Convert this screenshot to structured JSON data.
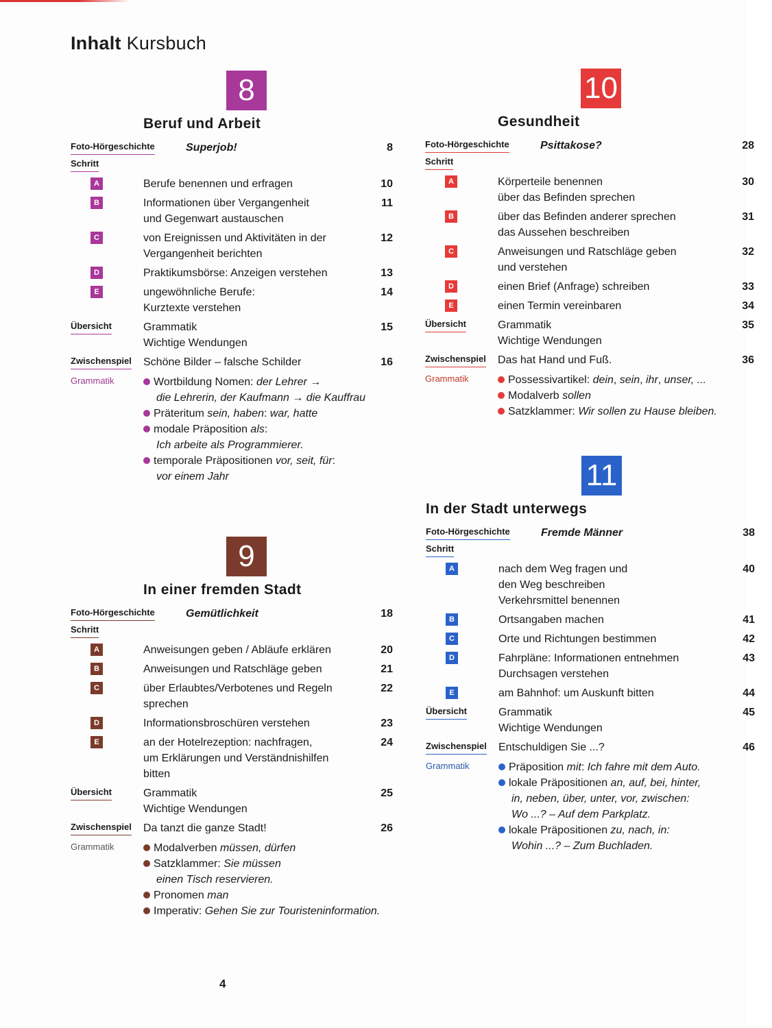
{
  "header": {
    "title_bold": "Inhalt",
    "title_rest": "Kursbuch"
  },
  "page_number": "4",
  "units": [
    {
      "number": "8",
      "title": "Beruf und Arbeit",
      "color": "#a8389a",
      "grammar_color": "#9a3a8e",
      "rows": [
        {
          "type": "story",
          "label": "Foto-Hörgeschichte",
          "lines": [
            "Superjob!"
          ],
          "page": "8"
        },
        {
          "type": "label",
          "label": "Schritt"
        },
        {
          "type": "step",
          "marker": "A",
          "lines": [
            "Berufe benennen und erfragen"
          ],
          "page": "10"
        },
        {
          "type": "step",
          "marker": "B",
          "lines": [
            "Informationen über Vergangenheit",
            "und Gegenwart austauschen"
          ],
          "page": "11"
        },
        {
          "type": "step",
          "marker": "C",
          "lines": [
            "von Ereignissen und Aktivitäten in der",
            "Vergangenheit berichten"
          ],
          "page": "12"
        },
        {
          "type": "step",
          "marker": "D",
          "lines": [
            "Praktikumsbörse: Anzeigen verstehen"
          ],
          "page": "13"
        },
        {
          "type": "step",
          "marker": "E",
          "lines": [
            "ungewöhnliche Berufe:",
            "Kurztexte verstehen"
          ],
          "page": "14"
        },
        {
          "type": "plain",
          "label": "Übersicht",
          "lines": [
            "Grammatik",
            "Wichtige Wendungen"
          ],
          "page": "15"
        },
        {
          "type": "plain",
          "label": "Zwischenspiel",
          "lines": [
            "Schöne Bilder – falsche Schilder"
          ],
          "page": "16"
        },
        {
          "type": "grammar",
          "label": "Grammatik",
          "items": [
            [
              [
                [
                  "Wortbildung Nomen: ",
                  0
                ],
                [
                  "der Lehrer →",
                  1
                ]
              ],
              [
                [
                  "die Lehrerin, der Kaufmann → die Kauffrau",
                  1
                ]
              ]
            ],
            [
              [
                [
                  "Präteritum ",
                  0
                ],
                [
                  "sein, haben",
                  1
                ],
                [
                  ": ",
                  0
                ],
                [
                  "war, hatte",
                  1
                ]
              ]
            ],
            [
              [
                [
                  "modale Präposition ",
                  0
                ],
                [
                  "als",
                  1
                ],
                [
                  ":",
                  0
                ]
              ],
              [
                [
                  "Ich arbeite als Programmierer.",
                  1
                ]
              ]
            ],
            [
              [
                [
                  "temporale Präpositionen ",
                  0
                ],
                [
                  "vor, seit, für",
                  1
                ],
                [
                  ":",
                  0
                ]
              ],
              [
                [
                  "vor einem Jahr",
                  1
                ]
              ]
            ]
          ]
        }
      ]
    },
    {
      "number": "9",
      "title": "In einer fremden Stadt",
      "color": "#7b3b2c",
      "grammar_color": "#555555",
      "rows": [
        {
          "type": "story",
          "label": "Foto-Hörgeschichte",
          "lines": [
            "Gemütlichkeit"
          ],
          "page": "18"
        },
        {
          "type": "label",
          "label": "Schritt"
        },
        {
          "type": "step",
          "marker": "A",
          "lines": [
            "Anweisungen geben / Abläufe erklären"
          ],
          "page": "20"
        },
        {
          "type": "step",
          "marker": "B",
          "lines": [
            "Anweisungen und Ratschläge geben"
          ],
          "page": "21"
        },
        {
          "type": "step",
          "marker": "C",
          "lines": [
            "über Erlaubtes/Verbotenes und Regeln",
            "sprechen"
          ],
          "page": "22"
        },
        {
          "type": "step",
          "marker": "D",
          "lines": [
            "Informationsbroschüren verstehen"
          ],
          "page": "23"
        },
        {
          "type": "step",
          "marker": "E",
          "lines": [
            "an der Hotelrezeption: nachfragen,",
            "um Erklärungen und Verständnishilfen",
            "bitten"
          ],
          "page": "24"
        },
        {
          "type": "plain",
          "label": "Übersicht",
          "lines": [
            "Grammatik",
            "Wichtige Wendungen"
          ],
          "page": "25"
        },
        {
          "type": "plain",
          "label": "Zwischenspiel",
          "lines": [
            "Da tanzt die ganze Stadt!"
          ],
          "page": "26"
        },
        {
          "type": "grammar",
          "label": "Grammatik",
          "items": [
            [
              [
                [
                  "Modalverben ",
                  0
                ],
                [
                  "müssen, dürfen",
                  1
                ]
              ]
            ],
            [
              [
                [
                  "Satzklammer: ",
                  0
                ],
                [
                  "Sie müssen",
                  1
                ]
              ],
              [
                [
                  "einen Tisch reservieren.",
                  1
                ]
              ]
            ],
            [
              [
                [
                  "Pronomen ",
                  0
                ],
                [
                  "man",
                  1
                ]
              ]
            ],
            [
              [
                [
                  "Imperativ: ",
                  0
                ],
                [
                  "Gehen Sie zur Touristeninformation.",
                  1
                ]
              ]
            ]
          ]
        }
      ]
    },
    {
      "number": "10",
      "title": "Gesundheit",
      "color": "#e63a3a",
      "grammar_color": "#c0392b",
      "rows": [
        {
          "type": "story",
          "label": "Foto-Hörgeschichte",
          "lines": [
            "Psittakose?"
          ],
          "page": "28"
        },
        {
          "type": "label",
          "label": "Schritt"
        },
        {
          "type": "step",
          "marker": "A",
          "lines": [
            "Körperteile benennen",
            "über das Befinden sprechen"
          ],
          "page": "30"
        },
        {
          "type": "step",
          "marker": "B",
          "lines": [
            "über das Befinden anderer sprechen",
            "das Aussehen beschreiben"
          ],
          "page": "31"
        },
        {
          "type": "step",
          "marker": "C",
          "lines": [
            "Anweisungen und Ratschläge geben",
            "und verstehen"
          ],
          "page": "32"
        },
        {
          "type": "step",
          "marker": "D",
          "lines": [
            "einen Brief (Anfrage) schreiben"
          ],
          "page": "33"
        },
        {
          "type": "step",
          "marker": "E",
          "lines": [
            "einen Termin vereinbaren"
          ],
          "page": "34"
        },
        {
          "type": "plain",
          "label": "Übersicht",
          "lines": [
            "Grammatik",
            "Wichtige Wendungen"
          ],
          "page": "35"
        },
        {
          "type": "plain",
          "label": "Zwischenspiel",
          "lines": [
            "Das hat Hand und Fuß."
          ],
          "page": "36"
        },
        {
          "type": "grammar",
          "label": "Grammatik",
          "items": [
            [
              [
                [
                  "Possessivartikel: ",
                  0
                ],
                [
                  "dein",
                  1
                ],
                [
                  ", ",
                  0
                ],
                [
                  "sein",
                  1
                ],
                [
                  ", ",
                  0
                ],
                [
                  "ihr",
                  1
                ],
                [
                  ", ",
                  0
                ],
                [
                  "unser, ...",
                  1
                ]
              ]
            ],
            [
              [
                [
                  "Modalverb ",
                  0
                ],
                [
                  "sollen",
                  1
                ]
              ]
            ],
            [
              [
                [
                  "Satzklammer: ",
                  0
                ],
                [
                  "Wir sollen zu Hause bleiben.",
                  1
                ]
              ]
            ]
          ]
        }
      ]
    },
    {
      "number": "11",
      "title": "In der Stadt unterwegs",
      "color": "#2a62c9",
      "grammar_color": "#2a5aa8",
      "rows": [
        {
          "type": "story",
          "label": "Foto-Hörgeschichte",
          "lines": [
            "Fremde Männer"
          ],
          "page": "38"
        },
        {
          "type": "label",
          "label": "Schritt"
        },
        {
          "type": "step",
          "marker": "A",
          "lines": [
            "nach dem Weg fragen und",
            "den Weg beschreiben",
            "Verkehrsmittel benennen"
          ],
          "page": "40"
        },
        {
          "type": "step",
          "marker": "B",
          "lines": [
            "Ortsangaben machen"
          ],
          "page": "41"
        },
        {
          "type": "step",
          "marker": "C",
          "lines": [
            "Orte und Richtungen bestimmen"
          ],
          "page": "42"
        },
        {
          "type": "step",
          "marker": "D",
          "lines": [
            "Fahrpläne: Informationen entnehmen",
            "Durchsagen verstehen"
          ],
          "page": "43"
        },
        {
          "type": "step",
          "marker": "E",
          "lines": [
            "am Bahnhof: um Auskunft bitten"
          ],
          "page": "44"
        },
        {
          "type": "plain",
          "label": "Übersicht",
          "lines": [
            "Grammatik",
            "Wichtige Wendungen"
          ],
          "page": "45"
        },
        {
          "type": "plain",
          "label": "Zwischenspiel",
          "lines": [
            "Entschuldigen Sie ...?"
          ],
          "page": "46"
        },
        {
          "type": "grammar",
          "label": "Grammatik",
          "items": [
            [
              [
                [
                  "Präposition ",
                  0
                ],
                [
                  "mit",
                  1
                ],
                [
                  ": ",
                  0
                ],
                [
                  "Ich fahre mit dem Auto.",
                  1
                ]
              ]
            ],
            [
              [
                [
                  "lokale Präpositionen ",
                  0
                ],
                [
                  "an, auf, bei, hinter,",
                  1
                ]
              ],
              [
                [
                  "in, neben, über, unter, vor, zwischen:",
                  1
                ]
              ],
              [
                [
                  "Wo ...? – Auf dem Parkplatz.",
                  1
                ]
              ]
            ],
            [
              [
                [
                  "lokale Präpositionen ",
                  0
                ],
                [
                  "zu, nach, in:",
                  1
                ]
              ],
              [
                [
                  "Wohin ...? – Zum Buchladen.",
                  1
                ]
              ]
            ]
          ]
        }
      ]
    }
  ]
}
